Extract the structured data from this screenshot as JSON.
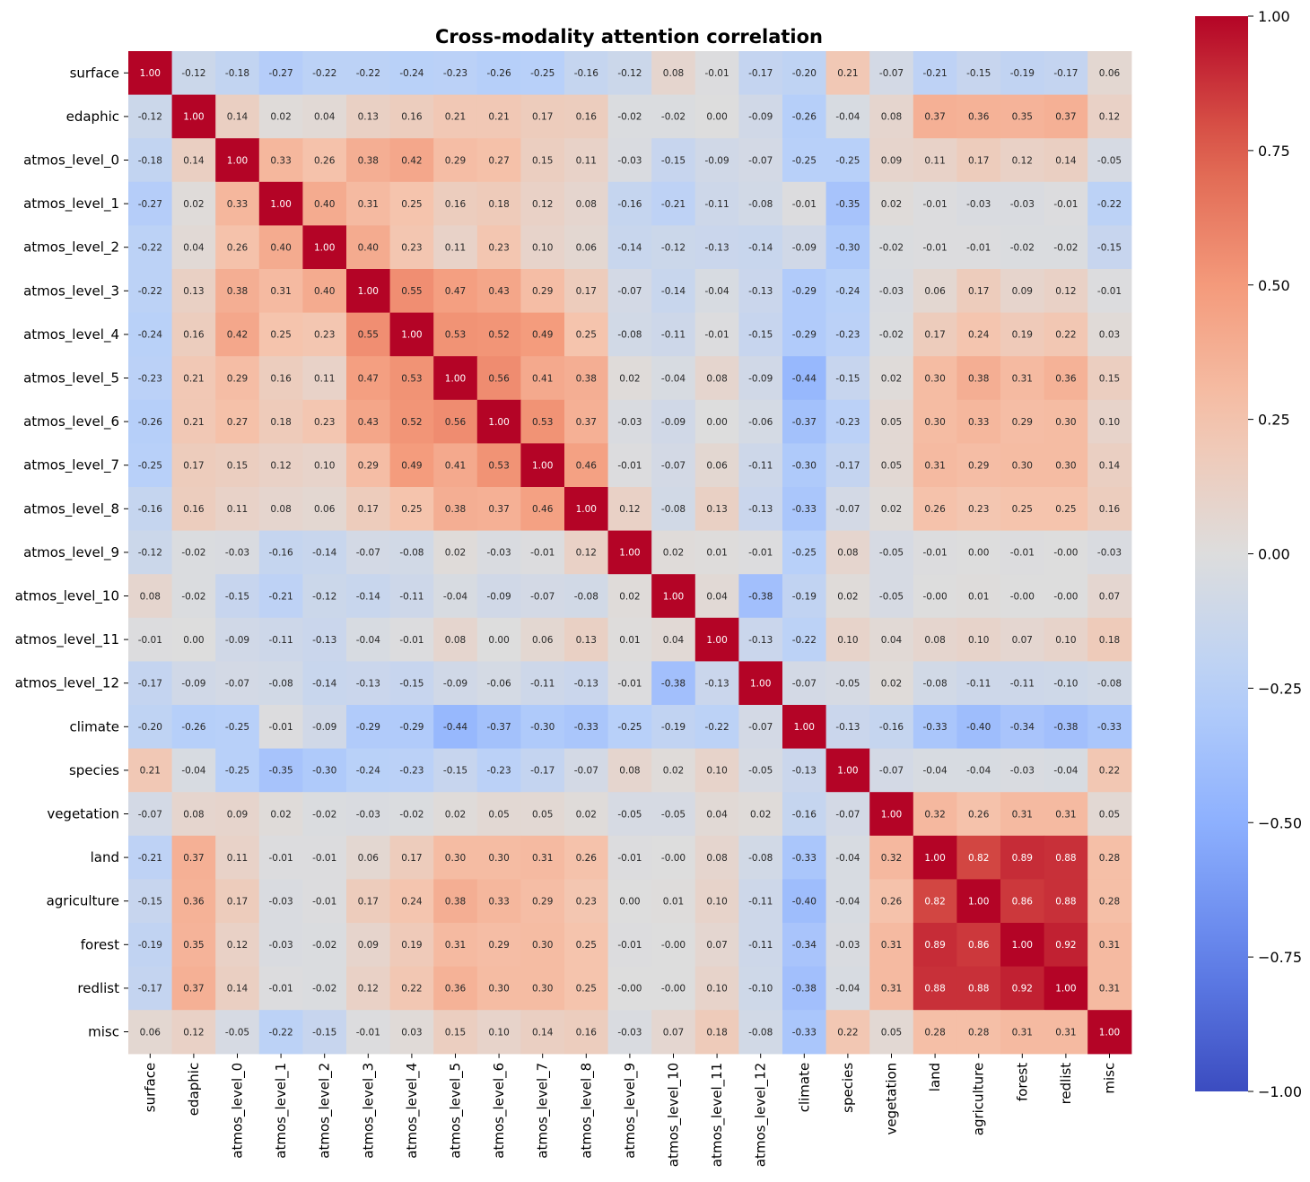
{
  "chart_data": {
    "type": "heatmap",
    "title": "Cross-modality attention correlation",
    "labels": [
      "surface",
      "edaphic",
      "atmos_level_0",
      "atmos_level_1",
      "atmos_level_2",
      "atmos_level_3",
      "atmos_level_4",
      "atmos_level_5",
      "atmos_level_6",
      "atmos_level_7",
      "atmos_level_8",
      "atmos_level_9",
      "atmos_level_10",
      "atmos_level_11",
      "atmos_level_12",
      "climate",
      "species",
      "vegetation",
      "land",
      "agriculture",
      "forest",
      "redlist",
      "misc"
    ],
    "matrix": [
      [
        1.0,
        -0.12,
        -0.18,
        -0.27,
        -0.22,
        -0.22,
        -0.24,
        -0.23,
        -0.26,
        -0.25,
        -0.16,
        -0.12,
        0.08,
        -0.01,
        -0.17,
        -0.2,
        0.21,
        -0.07,
        -0.21,
        -0.15,
        -0.19,
        -0.17,
        0.06
      ],
      [
        -0.12,
        1.0,
        0.14,
        0.02,
        0.04,
        0.13,
        0.16,
        0.21,
        0.21,
        0.17,
        0.16,
        -0.02,
        -0.02,
        0.0,
        -0.09,
        -0.26,
        -0.04,
        0.08,
        0.37,
        0.36,
        0.35,
        0.37,
        0.12
      ],
      [
        -0.18,
        0.14,
        1.0,
        0.33,
        0.26,
        0.38,
        0.42,
        0.29,
        0.27,
        0.15,
        0.11,
        -0.03,
        -0.15,
        -0.09,
        -0.07,
        -0.25,
        -0.25,
        0.09,
        0.11,
        0.17,
        0.12,
        0.14,
        -0.05
      ],
      [
        -0.27,
        0.02,
        0.33,
        1.0,
        0.4,
        0.31,
        0.25,
        0.16,
        0.18,
        0.12,
        0.08,
        -0.16,
        -0.21,
        -0.11,
        -0.08,
        -0.01,
        -0.35,
        0.02,
        -0.01,
        -0.03,
        -0.03,
        -0.01,
        -0.22
      ],
      [
        -0.22,
        0.04,
        0.26,
        0.4,
        1.0,
        0.4,
        0.23,
        0.11,
        0.23,
        0.1,
        0.06,
        -0.14,
        -0.12,
        -0.13,
        -0.14,
        -0.09,
        -0.3,
        -0.02,
        -0.01,
        -0.01,
        -0.02,
        -0.02,
        -0.15
      ],
      [
        -0.22,
        0.13,
        0.38,
        0.31,
        0.4,
        1.0,
        0.55,
        0.47,
        0.43,
        0.29,
        0.17,
        -0.07,
        -0.14,
        -0.04,
        -0.13,
        -0.29,
        -0.24,
        -0.03,
        0.06,
        0.17,
        0.09,
        0.12,
        -0.01
      ],
      [
        -0.24,
        0.16,
        0.42,
        0.25,
        0.23,
        0.55,
        1.0,
        0.53,
        0.52,
        0.49,
        0.25,
        -0.08,
        -0.11,
        -0.01,
        -0.15,
        -0.29,
        -0.23,
        -0.02,
        0.17,
        0.24,
        0.19,
        0.22,
        0.03
      ],
      [
        -0.23,
        0.21,
        0.29,
        0.16,
        0.11,
        0.47,
        0.53,
        1.0,
        0.56,
        0.41,
        0.38,
        0.02,
        -0.04,
        0.08,
        -0.09,
        -0.44,
        -0.15,
        0.02,
        0.3,
        0.38,
        0.31,
        0.36,
        0.15
      ],
      [
        -0.26,
        0.21,
        0.27,
        0.18,
        0.23,
        0.43,
        0.52,
        0.56,
        1.0,
        0.53,
        0.37,
        -0.03,
        -0.09,
        0.0,
        -0.06,
        -0.37,
        -0.23,
        0.05,
        0.3,
        0.33,
        0.29,
        0.3,
        0.1
      ],
      [
        -0.25,
        0.17,
        0.15,
        0.12,
        0.1,
        0.29,
        0.49,
        0.41,
        0.53,
        1.0,
        0.46,
        -0.01,
        -0.07,
        0.06,
        -0.11,
        -0.3,
        -0.17,
        0.05,
        0.31,
        0.29,
        0.3,
        0.3,
        0.14
      ],
      [
        -0.16,
        0.16,
        0.11,
        0.08,
        0.06,
        0.17,
        0.25,
        0.38,
        0.37,
        0.46,
        1.0,
        0.12,
        -0.08,
        0.13,
        -0.13,
        -0.33,
        -0.07,
        0.02,
        0.26,
        0.23,
        0.25,
        0.25,
        0.16
      ],
      [
        -0.12,
        -0.02,
        -0.03,
        -0.16,
        -0.14,
        -0.07,
        -0.08,
        0.02,
        -0.03,
        -0.01,
        0.12,
        1.0,
        0.02,
        0.01,
        -0.01,
        -0.25,
        0.08,
        -0.05,
        -0.01,
        0.0,
        -0.01,
        -0.0,
        -0.03
      ],
      [
        0.08,
        -0.02,
        -0.15,
        -0.21,
        -0.12,
        -0.14,
        -0.11,
        -0.04,
        -0.09,
        -0.07,
        -0.08,
        0.02,
        1.0,
        0.04,
        -0.38,
        -0.19,
        0.02,
        -0.05,
        -0.0,
        0.01,
        -0.0,
        -0.0,
        0.07
      ],
      [
        -0.01,
        0.0,
        -0.09,
        -0.11,
        -0.13,
        -0.04,
        -0.01,
        0.08,
        0.0,
        0.06,
        0.13,
        0.01,
        0.04,
        1.0,
        -0.13,
        -0.22,
        0.1,
        0.04,
        0.08,
        0.1,
        0.07,
        0.1,
        0.18
      ],
      [
        -0.17,
        -0.09,
        -0.07,
        -0.08,
        -0.14,
        -0.13,
        -0.15,
        -0.09,
        -0.06,
        -0.11,
        -0.13,
        -0.01,
        -0.38,
        -0.13,
        1.0,
        -0.07,
        -0.05,
        0.02,
        -0.08,
        -0.11,
        -0.11,
        -0.1,
        -0.08
      ],
      [
        -0.2,
        -0.26,
        -0.25,
        -0.01,
        -0.09,
        -0.29,
        -0.29,
        -0.44,
        -0.37,
        -0.3,
        -0.33,
        -0.25,
        -0.19,
        -0.22,
        -0.07,
        1.0,
        -0.13,
        -0.16,
        -0.33,
        -0.4,
        -0.34,
        -0.38,
        -0.33
      ],
      [
        0.21,
        -0.04,
        -0.25,
        -0.35,
        -0.3,
        -0.24,
        -0.23,
        -0.15,
        -0.23,
        -0.17,
        -0.07,
        0.08,
        0.02,
        0.1,
        -0.05,
        -0.13,
        1.0,
        -0.07,
        -0.04,
        -0.04,
        -0.03,
        -0.04,
        0.22
      ],
      [
        -0.07,
        0.08,
        0.09,
        0.02,
        -0.02,
        -0.03,
        -0.02,
        0.02,
        0.05,
        0.05,
        0.02,
        -0.05,
        -0.05,
        0.04,
        0.02,
        -0.16,
        -0.07,
        1.0,
        0.32,
        0.26,
        0.31,
        0.31,
        0.05
      ],
      [
        -0.21,
        0.37,
        0.11,
        -0.01,
        -0.01,
        0.06,
        0.17,
        0.3,
        0.3,
        0.31,
        0.26,
        -0.01,
        -0.0,
        0.08,
        -0.08,
        -0.33,
        -0.04,
        0.32,
        1.0,
        0.82,
        0.89,
        0.88,
        0.28
      ],
      [
        -0.15,
        0.36,
        0.17,
        -0.03,
        -0.01,
        0.17,
        0.24,
        0.38,
        0.33,
        0.29,
        0.23,
        0.0,
        0.01,
        0.1,
        -0.11,
        -0.4,
        -0.04,
        0.26,
        0.82,
        1.0,
        0.86,
        0.88,
        0.28
      ],
      [
        -0.19,
        0.35,
        0.12,
        -0.03,
        -0.02,
        0.09,
        0.19,
        0.31,
        0.29,
        0.3,
        0.25,
        -0.01,
        -0.0,
        0.07,
        -0.11,
        -0.34,
        -0.03,
        0.31,
        0.89,
        0.86,
        1.0,
        0.92,
        0.31
      ],
      [
        -0.17,
        0.37,
        0.14,
        -0.01,
        -0.02,
        0.12,
        0.22,
        0.36,
        0.3,
        0.3,
        0.25,
        -0.0,
        -0.0,
        0.1,
        -0.1,
        -0.38,
        -0.04,
        0.31,
        0.88,
        0.88,
        0.92,
        1.0,
        0.31
      ],
      [
        0.06,
        0.12,
        -0.05,
        -0.22,
        -0.15,
        -0.01,
        0.03,
        0.15,
        0.1,
        0.14,
        0.16,
        -0.03,
        0.07,
        0.18,
        -0.08,
        -0.33,
        0.22,
        0.05,
        0.28,
        0.28,
        0.31,
        0.31,
        1.0
      ]
    ],
    "value_format": "2-decimal",
    "vmin": -1.0,
    "vmax": 1.0,
    "colormap": "coolwarm",
    "colorbar_ticks": [
      1.0,
      0.75,
      0.5,
      0.25,
      0.0,
      -0.25,
      -0.5,
      -0.75,
      -1.0
    ],
    "colorbar_tick_labels": [
      "1.00",
      "0.75",
      "0.50",
      "0.25",
      "0.00",
      "−0.25",
      "−0.50",
      "−0.75",
      "−1.00"
    ]
  }
}
